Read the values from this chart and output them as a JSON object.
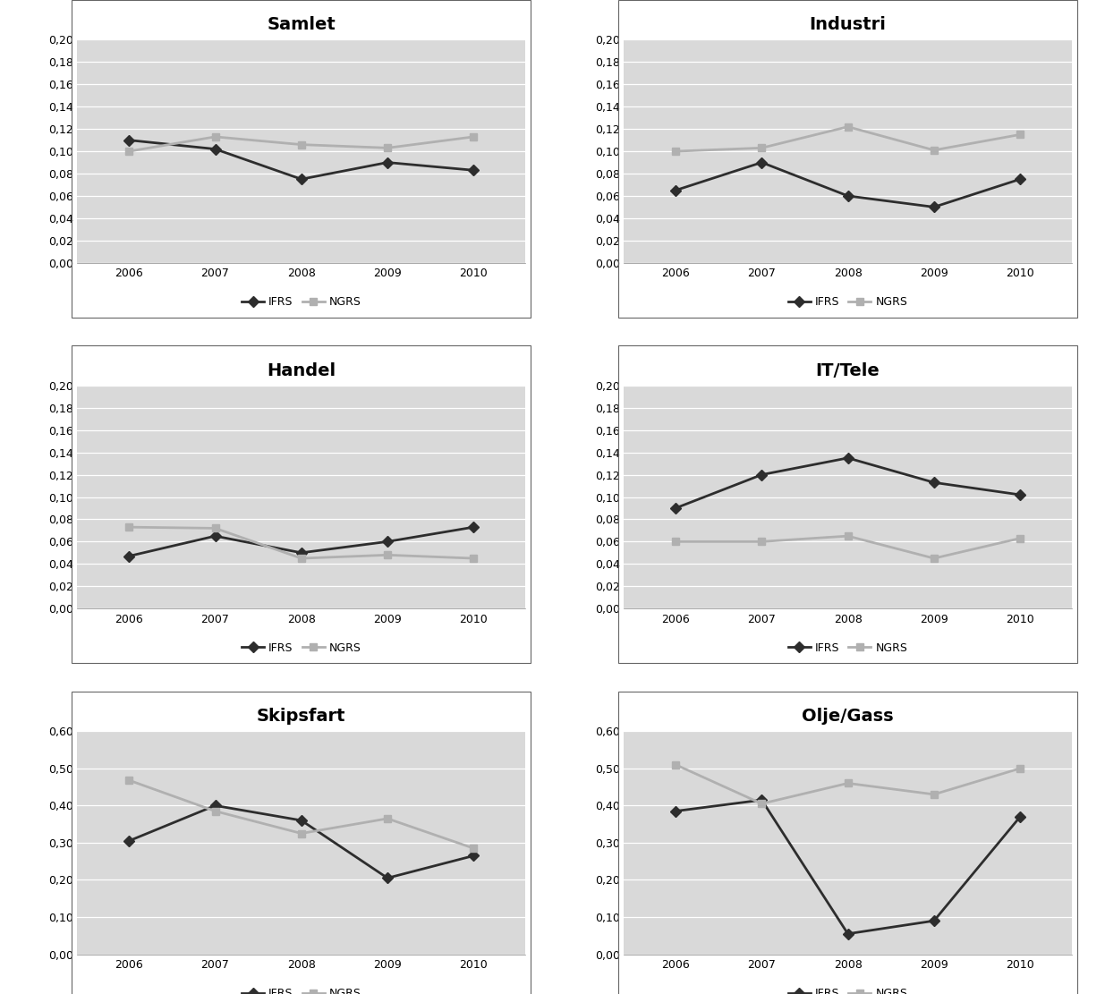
{
  "years": [
    2006,
    2007,
    2008,
    2009,
    2010
  ],
  "subplots": [
    {
      "title": "Samlet",
      "ifrs": [
        0.11,
        0.102,
        0.075,
        0.09,
        0.083
      ],
      "ngrs": [
        0.1,
        0.113,
        0.106,
        0.103,
        0.113
      ],
      "ylim": [
        0.0,
        0.2
      ],
      "yticks": [
        0.0,
        0.02,
        0.04,
        0.06,
        0.08,
        0.1,
        0.12,
        0.14,
        0.16,
        0.18,
        0.2
      ],
      "yformat": "2"
    },
    {
      "title": "Industri",
      "ifrs": [
        0.065,
        0.09,
        0.06,
        0.05,
        0.075
      ],
      "ngrs": [
        0.1,
        0.103,
        0.122,
        0.101,
        0.115
      ],
      "ylim": [
        0.0,
        0.2
      ],
      "yticks": [
        0.0,
        0.02,
        0.04,
        0.06,
        0.08,
        0.1,
        0.12,
        0.14,
        0.16,
        0.18,
        0.2
      ],
      "yformat": "2"
    },
    {
      "title": "Handel",
      "ifrs": [
        0.047,
        0.065,
        0.05,
        0.06,
        0.073
      ],
      "ngrs": [
        0.073,
        0.072,
        0.045,
        0.048,
        0.045
      ],
      "ylim": [
        0.0,
        0.2
      ],
      "yticks": [
        0.0,
        0.02,
        0.04,
        0.06,
        0.08,
        0.1,
        0.12,
        0.14,
        0.16,
        0.18,
        0.2
      ],
      "yformat": "2"
    },
    {
      "title": "IT/Tele",
      "ifrs": [
        0.09,
        0.12,
        0.135,
        0.113,
        0.102
      ],
      "ngrs": [
        0.06,
        0.06,
        0.065,
        0.045,
        0.063
      ],
      "ylim": [
        0.0,
        0.2
      ],
      "yticks": [
        0.0,
        0.02,
        0.04,
        0.06,
        0.08,
        0.1,
        0.12,
        0.14,
        0.16,
        0.18,
        0.2
      ],
      "yformat": "2"
    },
    {
      "title": "Skipsfart",
      "ifrs": [
        0.305,
        0.4,
        0.36,
        0.205,
        0.265
      ],
      "ngrs": [
        0.468,
        0.385,
        0.325,
        0.365,
        0.285
      ],
      "ylim": [
        0.0,
        0.6
      ],
      "yticks": [
        0.0,
        0.1,
        0.2,
        0.3,
        0.4,
        0.5,
        0.6
      ],
      "yformat": "2"
    },
    {
      "title": "Olje/Gass",
      "ifrs": [
        0.385,
        0.415,
        0.055,
        0.09,
        0.37
      ],
      "ngrs": [
        0.51,
        0.405,
        0.46,
        0.43,
        0.5
      ],
      "ylim": [
        0.0,
        0.6
      ],
      "yticks": [
        0.0,
        0.1,
        0.2,
        0.3,
        0.4,
        0.5,
        0.6
      ],
      "yformat": "2"
    }
  ],
  "ifrs_color": "#2d2d2d",
  "ngrs_color": "#b0b0b0",
  "plot_bg_color": "#d9d9d9",
  "outer_bg_color": "#ffffff",
  "grid_color": "#ffffff",
  "border_color": "#808080",
  "legend_labels": [
    "IFRS",
    "NGRS"
  ],
  "marker_ifrs": "D",
  "marker_ngrs": "s",
  "line_width": 2.0,
  "marker_size": 6,
  "title_fontsize": 14,
  "tick_fontsize": 9,
  "legend_fontsize": 9
}
